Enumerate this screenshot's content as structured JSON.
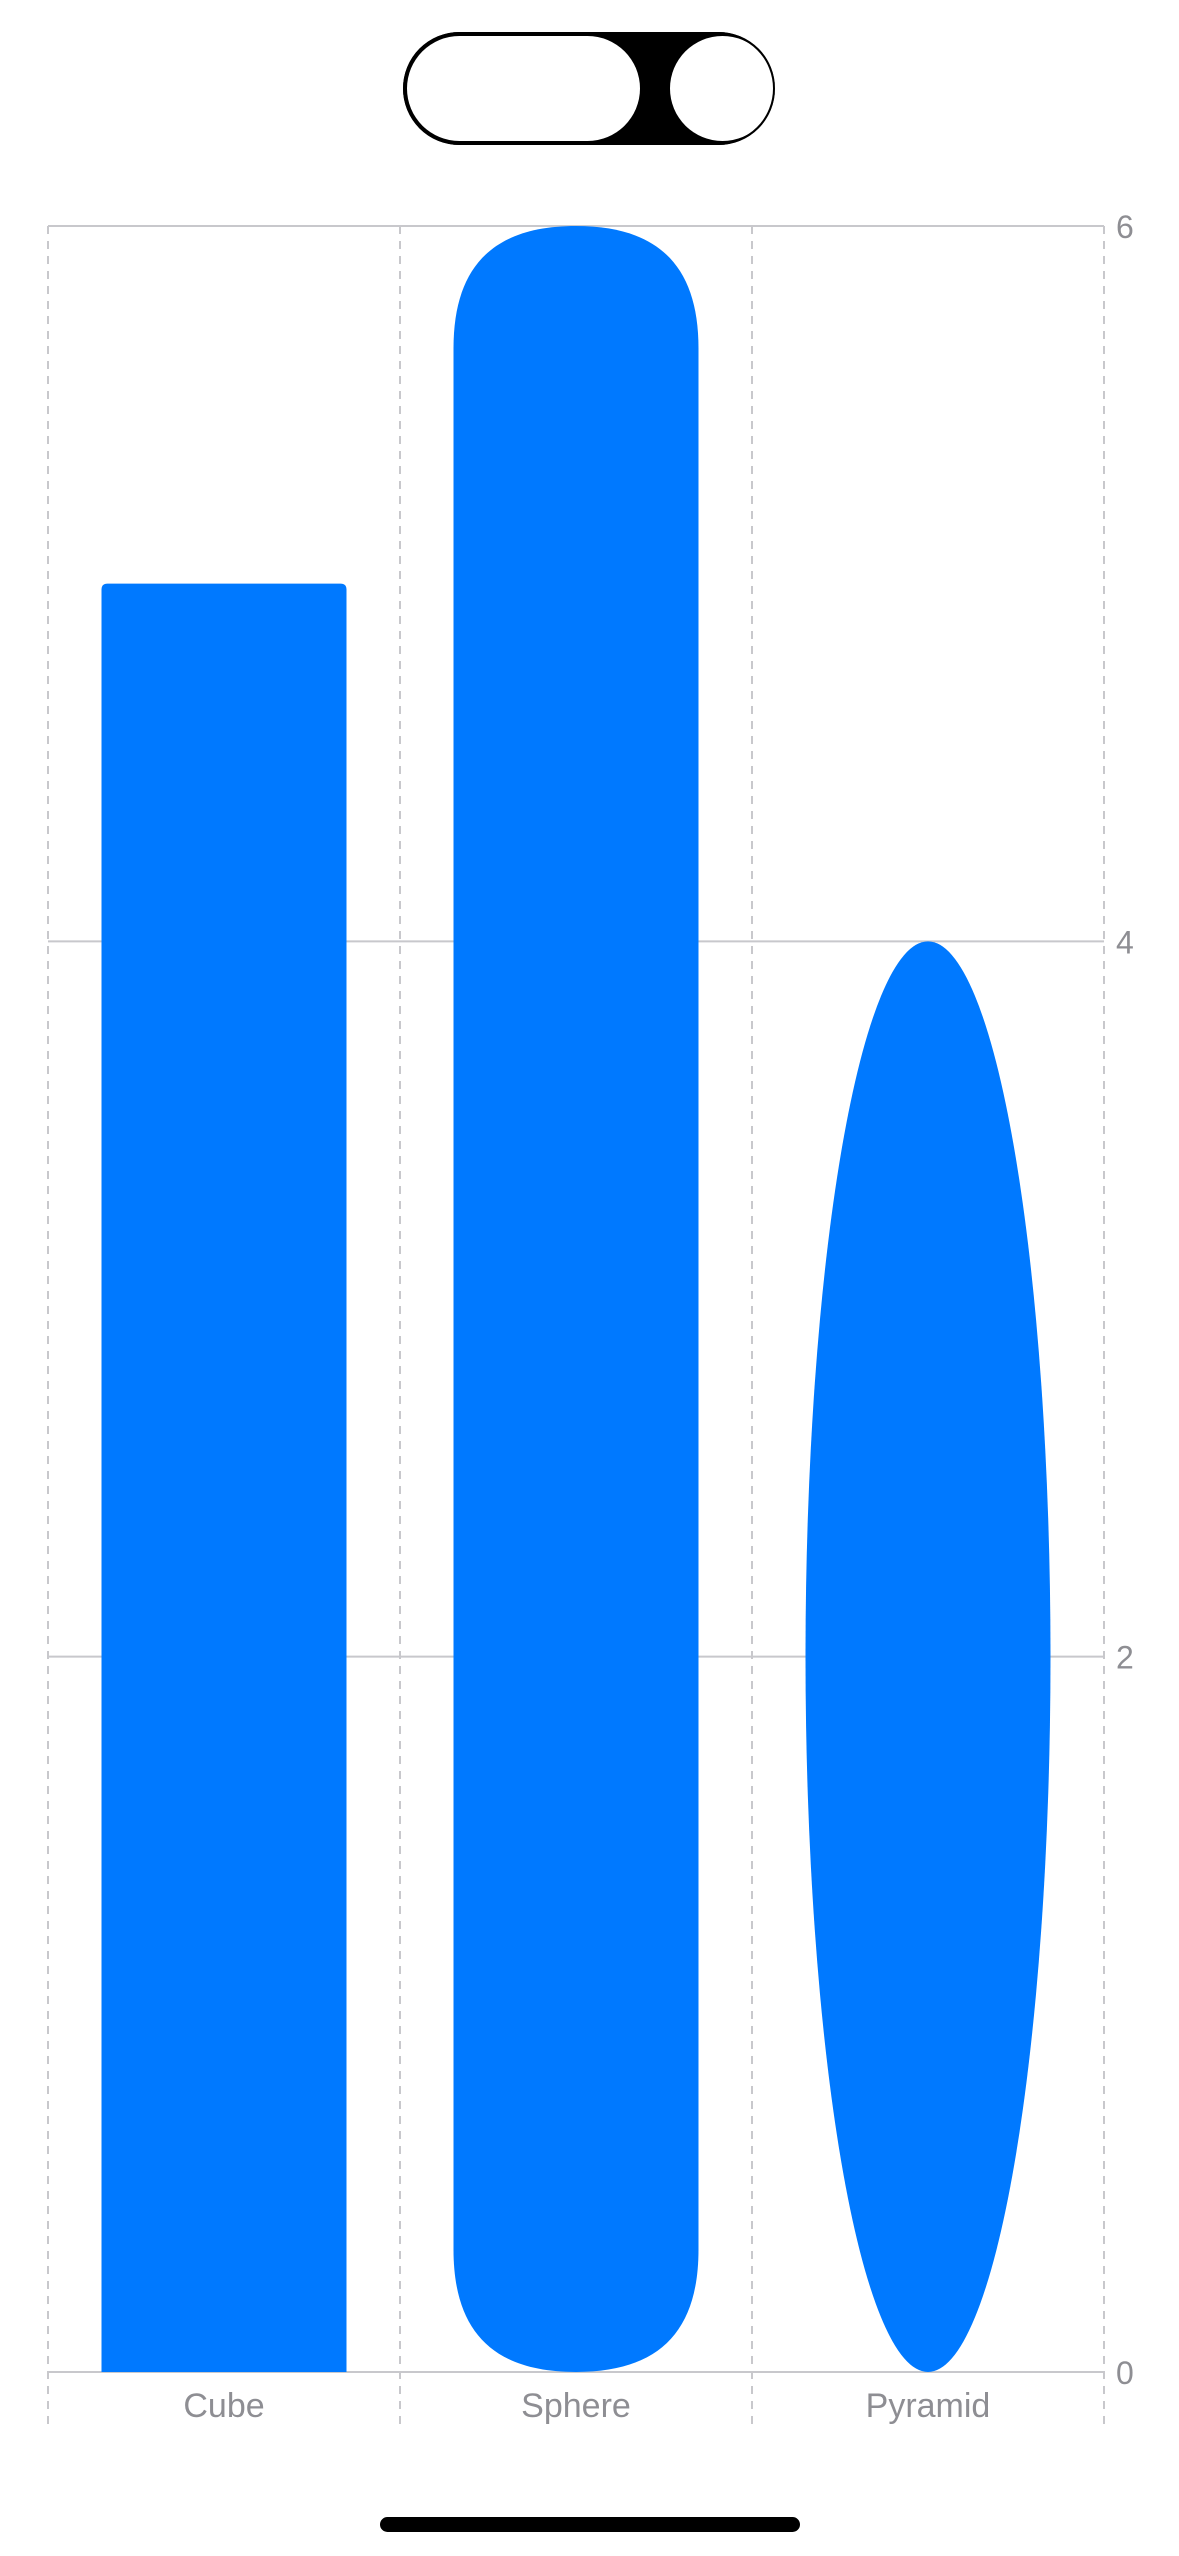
{
  "chart_data": {
    "type": "bar",
    "categories": [
      "Cube",
      "Sphere",
      "Pyramid"
    ],
    "values": [
      5.0,
      6.0,
      4.0
    ],
    "bar_shapes": [
      "rectangle",
      "capsule",
      "ellipse"
    ],
    "ylim": [
      0,
      6
    ],
    "y_ticks": [
      "0",
      "2",
      "4",
      "6"
    ],
    "y_axis_position": "right",
    "grid": true,
    "xlabel": "",
    "ylabel": "",
    "bar_color": "#0079FF"
  },
  "colors": {
    "grid": "#C8C8CC",
    "tick_label": "#8E8E93"
  }
}
